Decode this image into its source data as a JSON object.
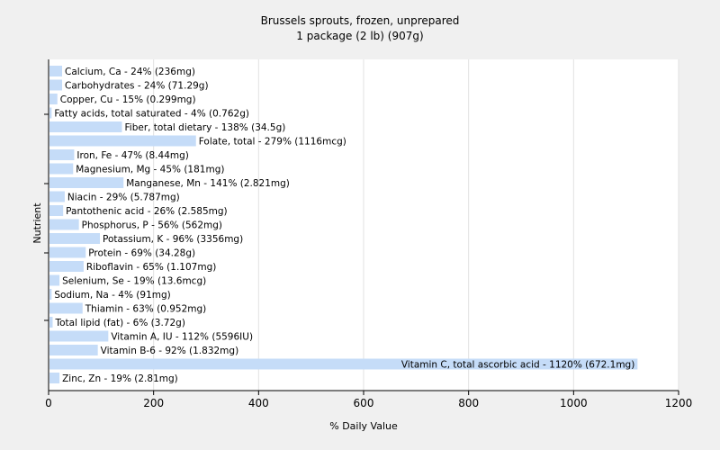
{
  "chart_data": {
    "type": "bar",
    "orientation": "horizontal",
    "title": "Brussels sprouts, frozen, unprepared",
    "subtitle": "1 package (2 lb) (907g)",
    "xlabel": "% Daily Value",
    "ylabel": "Nutrient",
    "xlim": [
      0,
      1200
    ],
    "xticks": [
      "0",
      "200",
      "400",
      "600",
      "800",
      "1000",
      "1200"
    ],
    "grid": true,
    "bar_color": "#c5dcf8",
    "categories": [
      "Calcium, Ca",
      "Carbohydrates",
      "Copper, Cu",
      "Fatty acids, total saturated",
      "Fiber, total dietary",
      "Folate, total",
      "Iron, Fe",
      "Magnesium, Mg",
      "Manganese, Mn",
      "Niacin",
      "Pantothenic acid",
      "Phosphorus, P",
      "Potassium, K",
      "Protein",
      "Riboflavin",
      "Selenium, Se",
      "Sodium, Na",
      "Thiamin",
      "Total lipid (fat)",
      "Vitamin A, IU",
      "Vitamin B-6",
      "Vitamin C, total ascorbic acid",
      "Zinc, Zn"
    ],
    "values": [
      24,
      24,
      15,
      4,
      138,
      279,
      47,
      45,
      141,
      29,
      26,
      56,
      96,
      69,
      65,
      19,
      4,
      63,
      6,
      112,
      92,
      1120,
      19
    ],
    "labels": [
      "Calcium, Ca - 24% (236mg)",
      "Carbohydrates - 24% (71.29g)",
      "Copper, Cu - 15% (0.299mg)",
      "Fatty acids, total saturated - 4% (0.762g)",
      "Fiber, total dietary - 138% (34.5g)",
      "Folate, total - 279% (1116mcg)",
      "Iron, Fe - 47% (8.44mg)",
      "Magnesium, Mg - 45% (181mg)",
      "Manganese, Mn - 141% (2.821mg)",
      "Niacin - 29% (5.787mg)",
      "Pantothenic acid - 26% (2.585mg)",
      "Phosphorus, P - 56% (562mg)",
      "Potassium, K - 96% (3356mg)",
      "Protein - 69% (34.28g)",
      "Riboflavin - 65% (1.107mg)",
      "Selenium, Se - 19% (13.6mcg)",
      "Sodium, Na - 4% (91mg)",
      "Thiamin - 63% (0.952mg)",
      "Total lipid (fat) - 6% (3.72g)",
      "Vitamin A, IU - 112% (5596IU)",
      "Vitamin B-6 - 92% (1.832mg)",
      "Vitamin C, total ascorbic acid - 1120% (672.1mg)",
      "Zinc, Zn - 19% (2.81mg)"
    ]
  }
}
